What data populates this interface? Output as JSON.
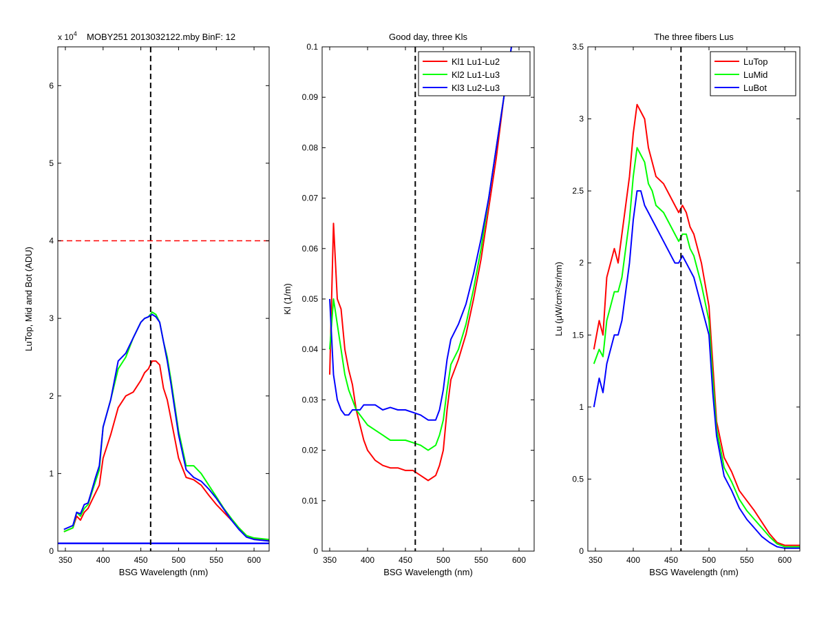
{
  "chart_data": [
    {
      "type": "line",
      "title": "MOBY251  2013032122.mby BinF: 12",
      "exponent_label": "x 10",
      "exponent_power": "4",
      "xlabel": "BSG Wavelength (nm)",
      "ylabel": "LuTop, Mid and Bot (ADU)",
      "xlim": [
        340,
        620
      ],
      "ylim": [
        0,
        6.5
      ],
      "xticks": [
        350,
        400,
        450,
        500,
        550,
        600
      ],
      "yticks": [
        0,
        1,
        2,
        3,
        4,
        5,
        6
      ],
      "vline": 463,
      "hlines": [
        {
          "y": 4.0,
          "color": "#ff0000",
          "dashed": true
        },
        {
          "y": 0.1,
          "color": "#0000ff",
          "dashed": false
        }
      ],
      "series": [
        {
          "color": "#ff0000",
          "x": [
            348,
            360,
            365,
            370,
            375,
            380,
            385,
            390,
            395,
            400,
            410,
            420,
            430,
            440,
            450,
            455,
            460,
            465,
            470,
            475,
            480,
            485,
            490,
            500,
            510,
            520,
            530,
            540,
            550,
            560,
            570,
            580,
            590,
            600,
            610,
            620
          ],
          "y": [
            0.25,
            0.3,
            0.45,
            0.4,
            0.5,
            0.55,
            0.65,
            0.75,
            0.85,
            1.2,
            1.5,
            1.85,
            2.0,
            2.05,
            2.2,
            2.3,
            2.35,
            2.45,
            2.45,
            2.4,
            2.1,
            1.95,
            1.7,
            1.2,
            0.95,
            0.92,
            0.85,
            0.72,
            0.6,
            0.5,
            0.4,
            0.3,
            0.2,
            0.16,
            0.15,
            0.14
          ]
        },
        {
          "color": "#00ff00",
          "x": [
            348,
            360,
            365,
            370,
            375,
            380,
            385,
            390,
            395,
            400,
            410,
            420,
            430,
            440,
            450,
            455,
            460,
            465,
            470,
            475,
            480,
            485,
            490,
            500,
            510,
            520,
            530,
            540,
            550,
            560,
            570,
            580,
            590,
            600,
            610,
            620
          ],
          "y": [
            0.25,
            0.3,
            0.5,
            0.45,
            0.55,
            0.6,
            0.75,
            0.9,
            1.05,
            1.6,
            1.95,
            2.35,
            2.5,
            2.75,
            2.95,
            3.0,
            3.02,
            3.08,
            3.05,
            2.95,
            2.7,
            2.5,
            2.2,
            1.55,
            1.1,
            1.1,
            1.0,
            0.85,
            0.7,
            0.55,
            0.42,
            0.3,
            0.2,
            0.17,
            0.16,
            0.15
          ]
        },
        {
          "color": "#0000ff",
          "x": [
            348,
            360,
            365,
            370,
            375,
            380,
            385,
            390,
            395,
            400,
            410,
            420,
            430,
            440,
            450,
            455,
            460,
            465,
            470,
            475,
            480,
            485,
            490,
            500,
            510,
            520,
            530,
            540,
            550,
            560,
            570,
            580,
            590,
            600,
            610,
            620
          ],
          "y": [
            0.28,
            0.33,
            0.5,
            0.48,
            0.6,
            0.62,
            0.78,
            0.95,
            1.1,
            1.6,
            1.95,
            2.45,
            2.55,
            2.75,
            2.95,
            3.0,
            3.02,
            3.05,
            3.02,
            2.95,
            2.7,
            2.45,
            2.15,
            1.5,
            1.05,
            0.95,
            0.9,
            0.8,
            0.68,
            0.54,
            0.4,
            0.28,
            0.18,
            0.15,
            0.14,
            0.13
          ]
        }
      ]
    },
    {
      "type": "line",
      "title": "Good day, three Kls",
      "xlabel": "BSG Wavelength (nm)",
      "ylabel": "Kl (1/m)",
      "xlim": [
        340,
        620
      ],
      "ylim": [
        0,
        0.1
      ],
      "xticks": [
        350,
        400,
        450,
        500,
        550,
        600
      ],
      "yticks": [
        0,
        0.01,
        0.02,
        0.03,
        0.04,
        0.05,
        0.06,
        0.07,
        0.08,
        0.09,
        0.1
      ],
      "vline": 463,
      "legend": [
        "Kl1 Lu1-Lu2",
        "Kl2 Lu1-Lu3",
        "Kl3 Lu2-Lu3"
      ],
      "legend_position": "top-right",
      "series": [
        {
          "name": "Kl1 Lu1-Lu2",
          "color": "#ff0000",
          "x": [
            350,
            355,
            360,
            365,
            370,
            375,
            380,
            385,
            390,
            395,
            400,
            410,
            420,
            430,
            440,
            450,
            460,
            470,
            480,
            490,
            495,
            500,
            505,
            510,
            520,
            530,
            540,
            550,
            560,
            570,
            580,
            585,
            590
          ],
          "y": [
            0.035,
            0.065,
            0.05,
            0.048,
            0.04,
            0.036,
            0.033,
            0.028,
            0.025,
            0.022,
            0.02,
            0.018,
            0.017,
            0.0165,
            0.0165,
            0.016,
            0.016,
            0.015,
            0.014,
            0.015,
            0.017,
            0.02,
            0.028,
            0.034,
            0.038,
            0.043,
            0.05,
            0.058,
            0.068,
            0.078,
            0.09,
            0.095,
            0.1
          ]
        },
        {
          "name": "Kl2 Lu1-Lu3",
          "color": "#00ff00",
          "x": [
            350,
            355,
            360,
            365,
            370,
            375,
            380,
            385,
            390,
            395,
            400,
            410,
            420,
            430,
            440,
            450,
            460,
            470,
            480,
            490,
            495,
            500,
            505,
            510,
            520,
            530,
            540,
            550,
            560,
            570,
            580,
            585,
            590
          ],
          "y": [
            0.04,
            0.05,
            0.045,
            0.04,
            0.035,
            0.032,
            0.03,
            0.028,
            0.027,
            0.026,
            0.025,
            0.024,
            0.023,
            0.022,
            0.022,
            0.022,
            0.0215,
            0.021,
            0.02,
            0.021,
            0.023,
            0.026,
            0.032,
            0.037,
            0.04,
            0.045,
            0.052,
            0.06,
            0.07,
            0.08,
            0.09,
            0.095,
            0.1
          ]
        },
        {
          "name": "Kl3 Lu2-Lu3",
          "color": "#0000ff",
          "x": [
            350,
            355,
            360,
            365,
            370,
            375,
            380,
            385,
            390,
            395,
            400,
            410,
            420,
            430,
            440,
            450,
            460,
            470,
            480,
            490,
            495,
            500,
            505,
            510,
            520,
            530,
            540,
            550,
            560,
            570,
            580,
            585,
            590
          ],
          "y": [
            0.05,
            0.035,
            0.03,
            0.028,
            0.027,
            0.027,
            0.028,
            0.028,
            0.028,
            0.029,
            0.029,
            0.029,
            0.028,
            0.0285,
            0.028,
            0.028,
            0.0275,
            0.027,
            0.026,
            0.026,
            0.028,
            0.032,
            0.038,
            0.042,
            0.045,
            0.049,
            0.055,
            0.062,
            0.07,
            0.08,
            0.09,
            0.095,
            0.1
          ]
        }
      ]
    },
    {
      "type": "line",
      "title": "The three fibers Lus",
      "xlabel": "BSG Wavelength (nm)",
      "ylabel": "Lu (μW/cm²/sr/nm)",
      "xlim": [
        340,
        620
      ],
      "ylim": [
        0,
        3.5
      ],
      "xticks": [
        350,
        400,
        450,
        500,
        550,
        600
      ],
      "yticks": [
        0,
        0.5,
        1,
        1.5,
        2,
        2.5,
        3,
        3.5
      ],
      "vline": 463,
      "legend": [
        "LuTop",
        "LuMid",
        "LuBot"
      ],
      "legend_position": "top-right",
      "series": [
        {
          "name": "LuTop",
          "color": "#ff0000",
          "x": [
            348,
            355,
            360,
            365,
            370,
            375,
            380,
            385,
            390,
            395,
            400,
            405,
            410,
            415,
            420,
            425,
            430,
            440,
            450,
            455,
            460,
            465,
            470,
            475,
            480,
            490,
            500,
            505,
            510,
            520,
            530,
            540,
            550,
            560,
            570,
            580,
            590,
            600,
            610,
            620
          ],
          "y": [
            1.4,
            1.6,
            1.5,
            1.9,
            2.0,
            2.1,
            2.0,
            2.2,
            2.4,
            2.6,
            2.9,
            3.1,
            3.05,
            3.0,
            2.8,
            2.7,
            2.6,
            2.55,
            2.45,
            2.4,
            2.35,
            2.4,
            2.35,
            2.25,
            2.2,
            2.0,
            1.7,
            1.3,
            0.9,
            0.65,
            0.55,
            0.42,
            0.35,
            0.28,
            0.2,
            0.12,
            0.06,
            0.04,
            0.04,
            0.04
          ]
        },
        {
          "name": "LuMid",
          "color": "#00ff00",
          "x": [
            348,
            355,
            360,
            365,
            370,
            375,
            380,
            385,
            390,
            395,
            400,
            405,
            410,
            415,
            420,
            425,
            430,
            440,
            450,
            455,
            460,
            465,
            470,
            475,
            480,
            490,
            500,
            505,
            510,
            520,
            530,
            540,
            550,
            560,
            570,
            580,
            590,
            600,
            610,
            620
          ],
          "y": [
            1.3,
            1.4,
            1.35,
            1.6,
            1.7,
            1.8,
            1.8,
            1.9,
            2.1,
            2.3,
            2.6,
            2.8,
            2.75,
            2.7,
            2.55,
            2.5,
            2.4,
            2.35,
            2.25,
            2.2,
            2.15,
            2.2,
            2.2,
            2.1,
            2.05,
            1.85,
            1.6,
            1.2,
            0.85,
            0.58,
            0.48,
            0.36,
            0.28,
            0.22,
            0.16,
            0.1,
            0.05,
            0.03,
            0.03,
            0.03
          ]
        },
        {
          "name": "LuBot",
          "color": "#0000ff",
          "x": [
            348,
            355,
            360,
            365,
            370,
            375,
            380,
            385,
            390,
            395,
            400,
            405,
            410,
            415,
            420,
            425,
            430,
            440,
            450,
            455,
            460,
            465,
            470,
            475,
            480,
            490,
            500,
            505,
            510,
            520,
            530,
            540,
            550,
            560,
            570,
            580,
            590,
            600,
            610,
            620
          ],
          "y": [
            1.0,
            1.2,
            1.1,
            1.3,
            1.4,
            1.5,
            1.5,
            1.6,
            1.8,
            2.0,
            2.3,
            2.5,
            2.5,
            2.4,
            2.35,
            2.3,
            2.25,
            2.15,
            2.05,
            2.0,
            2.0,
            2.05,
            2.0,
            1.95,
            1.9,
            1.7,
            1.5,
            1.1,
            0.8,
            0.52,
            0.42,
            0.3,
            0.22,
            0.16,
            0.1,
            0.06,
            0.03,
            0.02,
            0.02,
            0.02
          ]
        }
      ]
    }
  ]
}
